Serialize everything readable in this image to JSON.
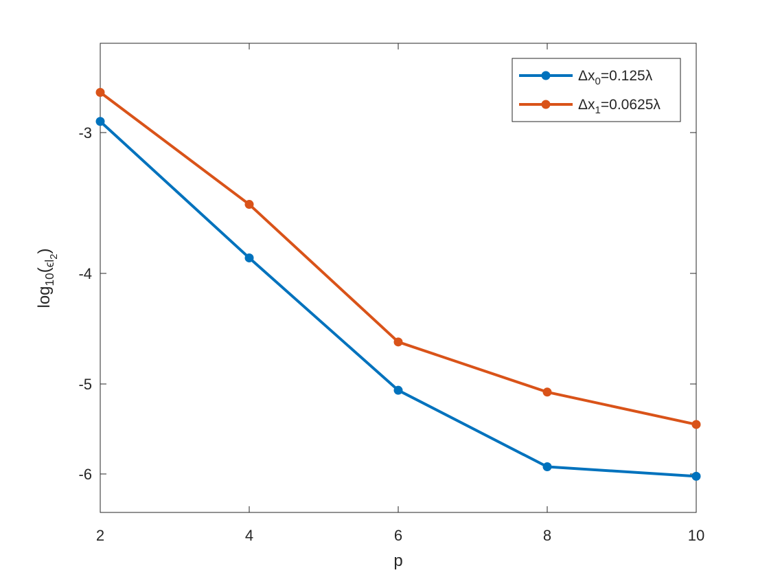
{
  "chart_data": {
    "type": "line",
    "xlabel": "p",
    "ylabel": {
      "parts": [
        {
          "t": "log"
        },
        {
          "t": "10",
          "s": "sub"
        },
        {
          "t": "("
        },
        {
          "t": "ϵ",
          "s": "sub"
        },
        {
          "t": "l",
          "s": "sub2"
        },
        {
          "t": "2",
          "s": "sub3"
        },
        {
          "t": ")"
        }
      ]
    },
    "x": [
      2,
      4,
      6,
      8,
      10
    ],
    "xlim": [
      2,
      10
    ],
    "ylim": [
      -6.33,
      -2.2
    ],
    "y_scale": "custom-nonlinear",
    "xticks": [
      2,
      4,
      6,
      8,
      10
    ],
    "xtick_labels": [
      "2",
      "4",
      "6",
      "8",
      "10"
    ],
    "yticks": [
      -3,
      -4,
      -5,
      -6
    ],
    "ytick_labels": [
      "-3",
      "-4",
      "-5",
      "-6"
    ],
    "grid": false,
    "legend_position": "top-right",
    "series": [
      {
        "name": "Δx0=0.125λ",
        "legend_parts": [
          {
            "t": "Δx"
          },
          {
            "t": "0",
            "s": "sub"
          },
          {
            "t": "=0.125λ"
          }
        ],
        "color": "#0072BD",
        "values": [
          -2.9,
          -3.89,
          -5.07,
          -5.92,
          -6.02
        ]
      },
      {
        "name": "Δx1=0.0625λ",
        "legend_parts": [
          {
            "t": "Δx"
          },
          {
            "t": "1",
            "s": "sub"
          },
          {
            "t": "=0.0625λ"
          }
        ],
        "color": "#D95319",
        "values": [
          -2.64,
          -3.51,
          -4.62,
          -5.09,
          -5.45
        ]
      }
    ]
  }
}
